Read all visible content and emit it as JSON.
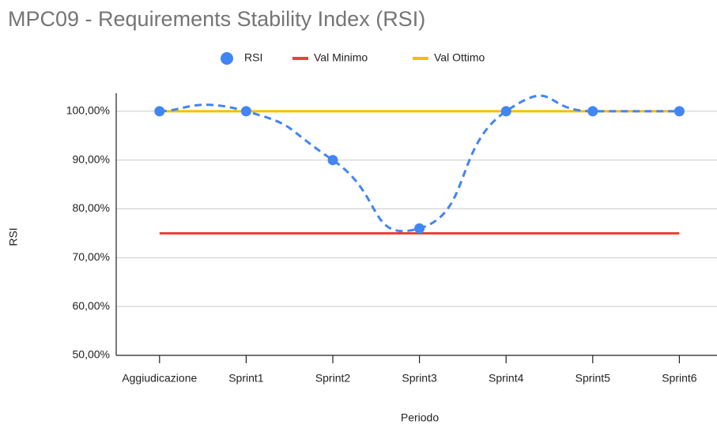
{
  "chart_data": {
    "type": "line",
    "title": "MPC09 - Requirements Stability Index (RSI)",
    "x_label": "Periodo",
    "y_label": "RSI",
    "categories": [
      "Aggiudicazione",
      "Sprint1",
      "Sprint2",
      "Sprint3",
      "Sprint4",
      "Sprint5",
      "Sprint6"
    ],
    "series": [
      {
        "name": "RSI",
        "color": "#4285f4",
        "values": [
          100,
          100,
          90,
          76,
          100,
          100,
          100
        ],
        "style": "smooth-dashed",
        "markers": true
      },
      {
        "name": "Val Minimo",
        "color": "#ea4335",
        "values": [
          75,
          75,
          75,
          75,
          75,
          75,
          75
        ],
        "style": "solid",
        "markers": false
      },
      {
        "name": "Val Ottimo",
        "color": "#fbbc04",
        "values": [
          100,
          100,
          100,
          100,
          100,
          100,
          100
        ],
        "style": "solid",
        "markers": false
      }
    ],
    "ylim": [
      50,
      103.7
    ],
    "yticks": [
      {
        "value": 50,
        "label": "50,00%"
      },
      {
        "value": 60,
        "label": "60,00%"
      },
      {
        "value": 70,
        "label": "70,00%"
      },
      {
        "value": 80,
        "label": "80,00%"
      },
      {
        "value": 90,
        "label": "90,00%"
      },
      {
        "value": 100,
        "label": "100,00%"
      }
    ],
    "grid": true,
    "legend": "top"
  }
}
